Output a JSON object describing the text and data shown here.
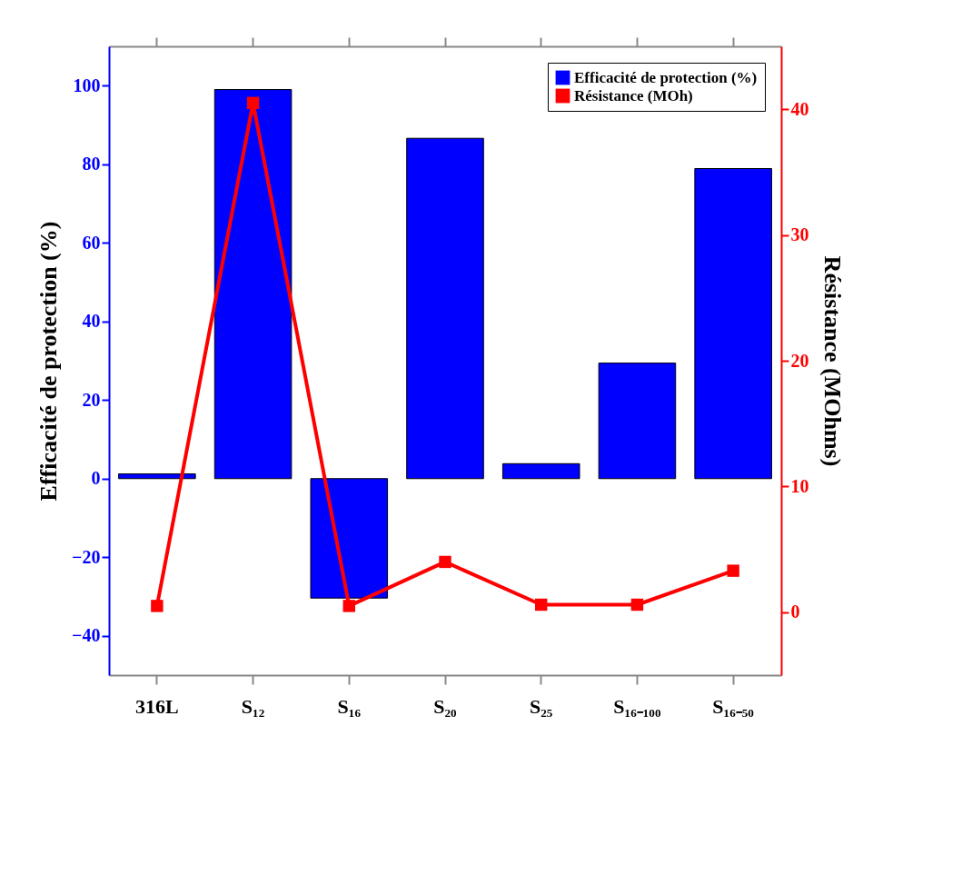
{
  "chart_data": {
    "type": "bar",
    "categories": [
      "316L",
      "S₁₂",
      "S₁₆",
      "S₂₀",
      "S₂₅",
      "S₁₆₋₁₀₀",
      "S₁₆₋₅₀"
    ],
    "ylabel": "Efficacité de protection (%)",
    "y2label": "Résistance (MOhms)",
    "series": [
      {
        "name": "Efficacité de protection (%)",
        "color": "#0000ff",
        "values": [
          1.2,
          99.0,
          -30.4,
          86.6,
          3.8,
          29.4,
          78.9
        ]
      },
      {
        "name": "Résistance (MOh)",
        "type": "line",
        "axis": "y2",
        "color": "#ff0000",
        "values": [
          0.5,
          40.5,
          0.5,
          4.0,
          0.6,
          0.6,
          3.3
        ]
      }
    ],
    "ylim": [
      -50,
      110
    ],
    "yticks": [
      -40,
      -20,
      0,
      20,
      40,
      60,
      80,
      100
    ],
    "y2lim": [
      -5,
      45
    ],
    "y2ticks": [
      0,
      10,
      20,
      30,
      40
    ],
    "marker": "square",
    "legend": "top right",
    "grid": false
  }
}
